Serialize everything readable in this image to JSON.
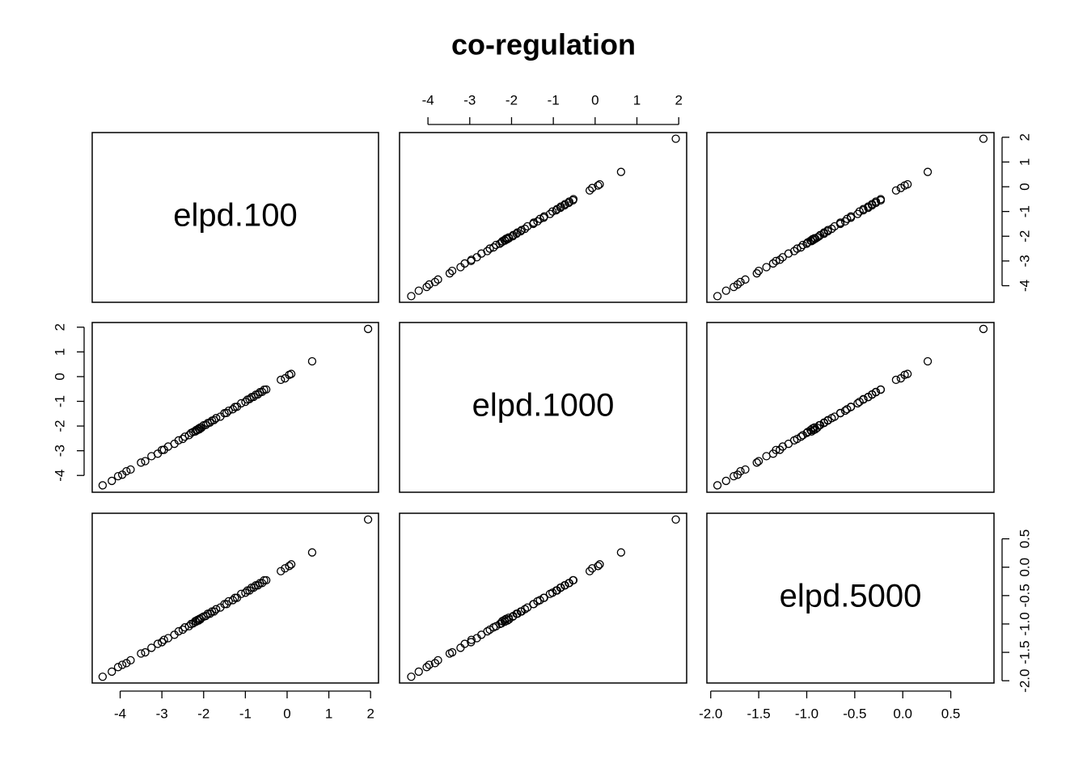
{
  "chart_data": {
    "type": "pairs",
    "title": "co-regulation",
    "point_color": "#000000",
    "variables": [
      {
        "name": "elpd.100",
        "values": [
          -4.42,
          -4.2,
          -4.05,
          -3.95,
          -3.85,
          -3.75,
          -3.5,
          -3.4,
          -3.25,
          -3.1,
          -3.0,
          -2.95,
          -2.85,
          -2.7,
          -2.6,
          -2.5,
          -2.45,
          -2.35,
          -2.3,
          -2.25,
          -2.2,
          -2.18,
          -2.15,
          -2.12,
          -2.1,
          -2.08,
          -2.05,
          -2.0,
          -1.95,
          -1.9,
          -1.85,
          -1.8,
          -1.75,
          -1.7,
          -1.6,
          -1.5,
          -1.45,
          -1.4,
          -1.3,
          -1.25,
          -1.2,
          -1.1,
          -1.0,
          -0.95,
          -0.9,
          -0.85,
          -0.8,
          -0.75,
          -0.7,
          -0.65,
          -0.6,
          -0.55,
          -0.5,
          -0.15,
          -0.05,
          0.05,
          0.1,
          0.6,
          1.94
        ],
        "lim": [
          -4.67,
          2.19
        ],
        "ticks": [
          -4,
          -3,
          -2,
          -1,
          0,
          1,
          2
        ]
      },
      {
        "name": "elpd.1000",
        "values": [
          -4.4,
          -4.22,
          -4.03,
          -3.97,
          -3.83,
          -3.76,
          -3.48,
          -3.42,
          -3.22,
          -3.12,
          -2.97,
          -2.96,
          -2.83,
          -2.72,
          -2.58,
          -2.52,
          -2.43,
          -2.37,
          -2.28,
          -2.24,
          -2.22,
          -2.16,
          -2.17,
          -2.1,
          -2.13,
          -2.06,
          -2.07,
          -1.97,
          -1.96,
          -1.88,
          -1.86,
          -1.78,
          -1.76,
          -1.68,
          -1.62,
          -1.48,
          -1.47,
          -1.38,
          -1.32,
          -1.23,
          -1.22,
          -1.08,
          -1.02,
          -0.93,
          -0.91,
          -0.83,
          -0.82,
          -0.73,
          -0.72,
          -0.63,
          -0.62,
          -0.53,
          -0.52,
          -0.13,
          -0.07,
          0.07,
          0.11,
          0.62,
          1.93
        ],
        "lim": [
          -4.68,
          2.19
        ],
        "ticks": [
          -4,
          -3,
          -2,
          -1,
          0,
          1,
          2
        ]
      },
      {
        "name": "elpd.5000",
        "values": [
          -1.93,
          -1.84,
          -1.76,
          -1.72,
          -1.69,
          -1.64,
          -1.52,
          -1.5,
          -1.42,
          -1.35,
          -1.32,
          -1.28,
          -1.25,
          -1.19,
          -1.13,
          -1.1,
          -1.06,
          -1.04,
          -1.0,
          -0.99,
          -0.95,
          -0.96,
          -0.93,
          -0.94,
          -0.91,
          -0.92,
          -0.89,
          -0.87,
          -0.86,
          -0.82,
          -0.82,
          -0.78,
          -0.78,
          -0.74,
          -0.71,
          -0.65,
          -0.65,
          -0.6,
          -0.58,
          -0.54,
          -0.54,
          -0.47,
          -0.45,
          -0.41,
          -0.41,
          -0.36,
          -0.36,
          -0.32,
          -0.32,
          -0.28,
          -0.28,
          -0.23,
          -0.23,
          -0.07,
          -0.02,
          0.02,
          0.05,
          0.26,
          0.84
        ],
        "lim": [
          -2.04,
          0.95
        ],
        "ticks": [
          {
            "value": -2,
            "label": "-2.0"
          },
          -1.5,
          {
            "value": -1,
            "label": "-1.0"
          },
          -0.5,
          {
            "value": 0,
            "label": "0.0"
          },
          0.5
        ]
      }
    ]
  }
}
